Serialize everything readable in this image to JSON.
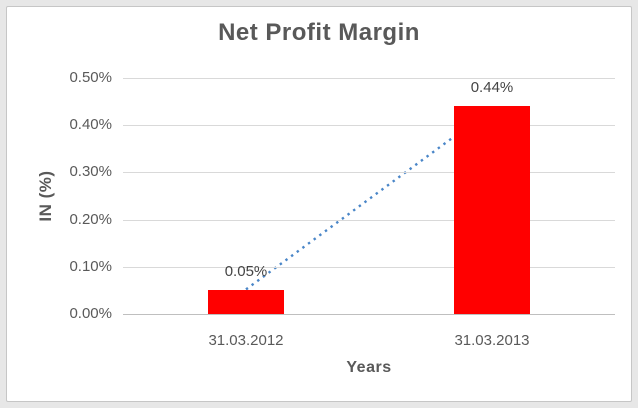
{
  "chart_data": {
    "type": "bar",
    "title": "Net Profit Margin",
    "xlabel": "Years",
    "ylabel": "IN (%)",
    "categories": [
      "31.03.2012",
      "31.03.2013"
    ],
    "series": [
      {
        "name": "Net Profit Margin",
        "values": [
          0.05,
          0.44
        ]
      }
    ],
    "data_labels": [
      "0.05%",
      "0.44%"
    ],
    "yticks_top_to_bottom": [
      "0.50%",
      "0.40%",
      "0.30%",
      "0.20%",
      "0.10%",
      "0.00%"
    ],
    "ylim": [
      0,
      0.5
    ],
    "grid": "horizontal",
    "legend": "none",
    "trendline": {
      "type": "linear",
      "style": "dotted",
      "spans_values": [
        0.05,
        0.44
      ]
    }
  },
  "colors": {
    "bar": "#ff0000",
    "trendline": "#4a86c8",
    "gridline": "#d9d9d9",
    "axis_line": "#bfbfbf",
    "title_text": "#595959",
    "tick_text": "#595959",
    "data_label_text": "#444444",
    "chart_background": "#ffffff",
    "outer_background": "#e7e7e7",
    "chart_border": "#c6c6c6"
  }
}
